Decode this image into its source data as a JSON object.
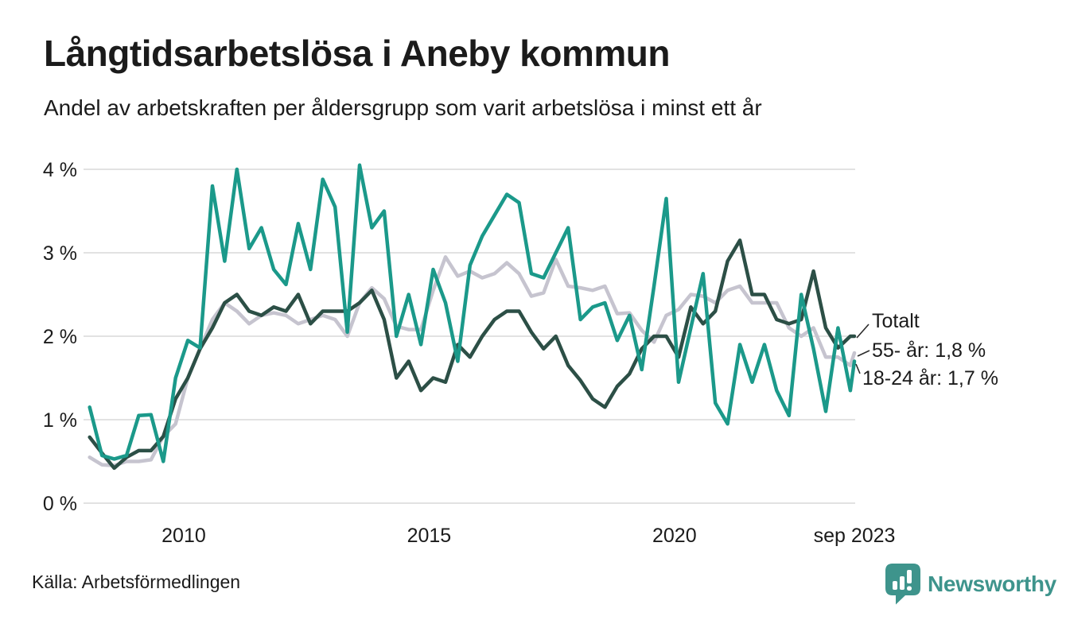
{
  "header": {
    "title": "Långtidsarbetslösa i Aneby kommun",
    "subtitle": "Andel av arbetskraften per åldersgrupp som varit arbetslösa i minst ett år"
  },
  "annotations": [
    {
      "series": "Totalt",
      "label": "Totalt"
    },
    {
      "series": "55- år",
      "label": "55- år: 1,8 %"
    },
    {
      "series": "18-24 år",
      "label": "18-24 år: 1,7 %"
    }
  ],
  "footer": {
    "source": "Källa: Arbetsförmedlingen",
    "brand": "Newsworthy",
    "brand_icon": "speech-bubble-bar-chart-icon"
  },
  "colors": {
    "total_line": "#2c4f46",
    "age55_line": "#c6c4cf",
    "age1824_line": "#1b998a",
    "grid": "#e2e2e2",
    "text": "#1b1b1b",
    "brand_teal": "#3e948c"
  },
  "chart_data": {
    "type": "line",
    "title": "Långtidsarbetslösa i Aneby kommun",
    "subtitle": "Andel av arbetskraften per åldersgrupp som varit arbetslösa i minst ett år",
    "unit": "percent of labour force",
    "grid": true,
    "legend": "end-of-line-labels",
    "ylim": [
      0,
      4
    ],
    "y_ticks": [
      {
        "value": 0,
        "label": "0 %"
      },
      {
        "value": 1,
        "label": "1 %"
      },
      {
        "value": 2,
        "label": "2 %"
      },
      {
        "value": 3,
        "label": "3 %"
      },
      {
        "value": 4,
        "label": "4 %"
      }
    ],
    "x_start": "2008-01",
    "x_end": "2023-09",
    "x_ticks": [
      {
        "t": 24,
        "label": "2010"
      },
      {
        "t": 84,
        "label": "2015"
      },
      {
        "t": 144,
        "label": "2020"
      },
      {
        "t": 188,
        "label": "sep 2023"
      }
    ],
    "t_months": [
      1,
      4,
      7,
      10,
      13,
      16,
      19,
      22,
      25,
      28,
      31,
      34,
      37,
      40,
      43,
      46,
      49,
      52,
      55,
      58,
      61,
      64,
      67,
      70,
      73,
      76,
      79,
      82,
      85,
      88,
      91,
      94,
      97,
      100,
      103,
      106,
      109,
      112,
      115,
      118,
      121,
      124,
      127,
      130,
      133,
      136,
      139,
      142,
      145,
      148,
      151,
      154,
      157,
      160,
      163,
      166,
      169,
      172,
      175,
      178,
      181,
      184,
      187,
      188
    ],
    "series": [
      {
        "name": "Totalt",
        "color": "#2c4f46",
        "final_value": 2.0,
        "final_label": "Totalt",
        "values": [
          0.79,
          0.6,
          0.42,
          0.55,
          0.63,
          0.63,
          0.8,
          1.25,
          1.5,
          1.85,
          2.1,
          2.4,
          2.5,
          2.3,
          2.25,
          2.35,
          2.3,
          2.5,
          2.15,
          2.3,
          2.3,
          2.3,
          2.4,
          2.55,
          2.2,
          1.5,
          1.7,
          1.35,
          1.5,
          1.45,
          1.9,
          1.75,
          2.0,
          2.2,
          2.3,
          2.3,
          2.05,
          1.85,
          2.0,
          1.65,
          1.47,
          1.25,
          1.15,
          1.4,
          1.55,
          1.85,
          2.0,
          2.0,
          1.75,
          2.35,
          2.15,
          2.3,
          2.9,
          3.15,
          2.5,
          2.5,
          2.2,
          2.15,
          2.2,
          2.78,
          2.1,
          1.86,
          2.0,
          2.0
        ]
      },
      {
        "name": "55- år",
        "color": "#c6c4cf",
        "final_value": 1.8,
        "final_label": "55- år: 1,8 %",
        "values": [
          0.55,
          0.46,
          0.45,
          0.5,
          0.5,
          0.52,
          0.8,
          0.95,
          1.5,
          1.85,
          2.2,
          2.4,
          2.3,
          2.15,
          2.25,
          2.28,
          2.25,
          2.15,
          2.2,
          2.25,
          2.2,
          2.0,
          2.4,
          2.58,
          2.45,
          2.12,
          2.08,
          2.08,
          2.55,
          2.95,
          2.72,
          2.78,
          2.7,
          2.75,
          2.88,
          2.75,
          2.48,
          2.52,
          2.92,
          2.6,
          2.58,
          2.55,
          2.6,
          2.27,
          2.28,
          2.07,
          1.93,
          2.25,
          2.32,
          2.5,
          2.48,
          2.4,
          2.55,
          2.6,
          2.4,
          2.4,
          2.4,
          2.1,
          2.0,
          2.1,
          1.75,
          1.75,
          1.65,
          1.8
        ]
      },
      {
        "name": "18-24 år",
        "color": "#1b998a",
        "final_value": 1.7,
        "final_label": "18-24 år: 1,7 %",
        "values": [
          1.15,
          0.57,
          0.53,
          0.57,
          1.05,
          1.06,
          0.5,
          1.5,
          1.95,
          1.86,
          3.8,
          2.9,
          4.0,
          3.05,
          3.3,
          2.8,
          2.62,
          3.35,
          2.8,
          3.88,
          3.55,
          2.05,
          4.05,
          3.3,
          3.5,
          2.0,
          2.5,
          1.9,
          2.8,
          2.4,
          1.7,
          2.85,
          3.2,
          3.45,
          3.7,
          3.6,
          2.75,
          2.7,
          3.0,
          3.3,
          2.2,
          2.35,
          2.4,
          1.95,
          2.25,
          1.6,
          2.6,
          3.65,
          1.45,
          2.1,
          2.75,
          1.2,
          0.95,
          1.9,
          1.45,
          1.9,
          1.35,
          1.05,
          2.5,
          1.85,
          1.1,
          2.1,
          1.35,
          1.7
        ]
      }
    ]
  }
}
